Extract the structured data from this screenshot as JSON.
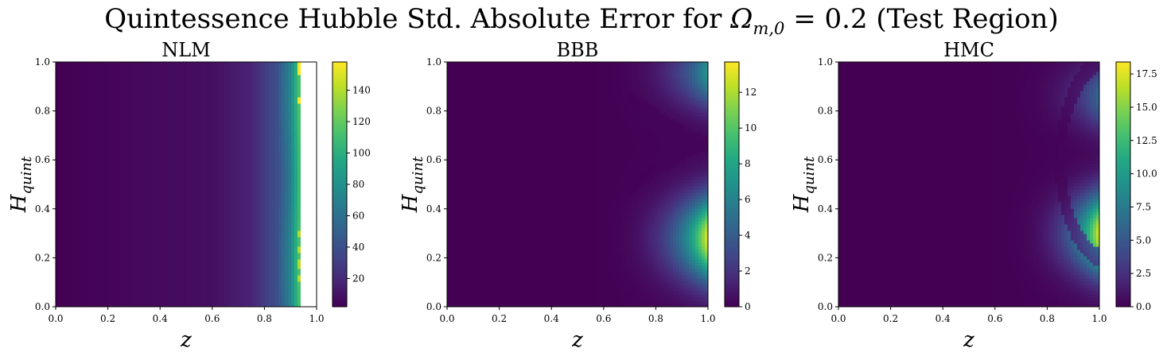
{
  "figure": {
    "title_prefix": "Quintessence Hubble Std. Absolute Error for ",
    "title_symbol": "Ω",
    "title_subscript": "m,0",
    "title_suffix": " = 0.2 (Test Region)"
  },
  "chart_data": [
    {
      "type": "heatmap",
      "title": "NLM",
      "xlabel": "z",
      "ylabel": "H_quint",
      "xlim": [
        0.0,
        1.0
      ],
      "ylim": [
        0.0,
        1.0
      ],
      "xticks": [
        "0.0",
        "0.2",
        "0.4",
        "0.6",
        "0.8",
        "1.0"
      ],
      "yticks": [
        "0.0",
        "0.2",
        "0.4",
        "0.6",
        "0.8",
        "1.0"
      ],
      "colormap": "viridis",
      "colorbar": {
        "min": 2,
        "max": 158,
        "ticks": [
          20,
          40,
          60,
          80,
          100,
          120,
          140
        ],
        "tick_labels": [
          "20",
          "40",
          "60",
          "80",
          "100",
          "120",
          "140"
        ]
      },
      "field": {
        "description": "error grows with z; near zero below z≈0.6, rising to ~100 at z≈0.93; saturated spikes near z≈0.93-0.94 and no data (white) for z>0.94",
        "profile_z": [
          0.0,
          0.6,
          0.75,
          0.85,
          0.9,
          0.93
        ],
        "profile_value": [
          2,
          8,
          18,
          40,
          70,
          110
        ],
        "nan_above_z": 0.945,
        "spikes": [
          {
            "z": [
              0.93,
              0.945
            ],
            "y": [
              0.95,
              1.0
            ],
            "value": 158
          },
          {
            "z": [
              0.93,
              0.945
            ],
            "y": [
              0.83,
              0.86
            ],
            "value": 158
          },
          {
            "z": [
              0.925,
              0.94
            ],
            "y": [
              0.1,
              0.32
            ],
            "value": 140
          }
        ]
      }
    },
    {
      "type": "heatmap",
      "title": "BBB",
      "xlabel": "z",
      "ylabel": "H_quint",
      "xlim": [
        0.0,
        1.0
      ],
      "ylim": [
        0.0,
        1.0
      ],
      "xticks": [
        "0.0",
        "0.2",
        "0.4",
        "0.6",
        "0.8",
        "1.0"
      ],
      "yticks": [
        "0.0",
        "0.2",
        "0.4",
        "0.6",
        "0.8",
        "1.0"
      ],
      "colormap": "viridis",
      "colorbar": {
        "min": 0,
        "max": 13.7,
        "ticks": [
          0,
          2,
          4,
          6,
          8,
          10,
          12
        ],
        "tick_labels": [
          "0",
          "2",
          "4",
          "6",
          "8",
          "10",
          "12"
        ]
      },
      "field": {
        "description": "near zero for z<0.7; peak ~13 at z=1.0, H≈0.28; secondary ~7 at z=1.0, H≈0.95; dark arc near H≈0.67",
        "hotspots": [
          {
            "z": 1.0,
            "y": 0.28,
            "value": 13.2
          },
          {
            "z": 1.0,
            "y": 0.95,
            "value": 7.0
          }
        ]
      }
    },
    {
      "type": "heatmap",
      "title": "HMC",
      "xlabel": "z",
      "ylabel": "H_quint",
      "xlim": [
        0.0,
        1.0
      ],
      "ylim": [
        0.0,
        1.0
      ],
      "xticks": [
        "0.0",
        "0.2",
        "0.4",
        "0.6",
        "0.8",
        "1.0"
      ],
      "yticks": [
        "0.0",
        "0.2",
        "0.4",
        "0.6",
        "0.8",
        "1.0"
      ],
      "colormap": "viridis",
      "colorbar": {
        "min": 0,
        "max": 18.4,
        "ticks": [
          0,
          2.5,
          5,
          7.5,
          10,
          12.5,
          15,
          17.5
        ],
        "tick_labels": [
          "0.0",
          "2.5",
          "5.0",
          "7.5",
          "10.0",
          "12.5",
          "15.0",
          "17.5"
        ]
      },
      "field": {
        "description": "near zero for z<0.75; peak ~17.5 at z=1.0, H≈0.3; secondary ~6 at z=1.0, H≈0.85; dark arc around H≈0.6",
        "hotspots": [
          {
            "z": 1.0,
            "y": 0.3,
            "value": 17.5
          },
          {
            "z": 1.0,
            "y": 0.85,
            "value": 6.0
          }
        ]
      }
    }
  ]
}
